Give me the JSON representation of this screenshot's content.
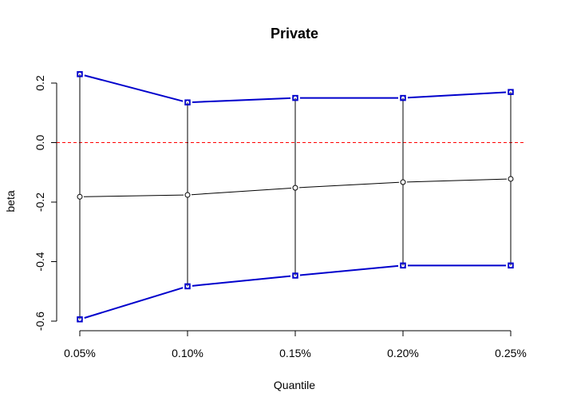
{
  "chart_data": {
    "type": "line",
    "title": "Private",
    "xlabel": "Quantile",
    "ylabel": "beta",
    "categories": [
      "0.05%",
      "0.10%",
      "0.15%",
      "0.20%",
      "0.25%"
    ],
    "y_ticks": [
      "-0.6",
      "-0.4",
      "-0.2",
      "0.0",
      "0.2"
    ],
    "ylim": [
      -0.6,
      0.2
    ],
    "reference_line": {
      "y": 0.0,
      "color": "#ff0000",
      "style": "dashed"
    },
    "series": [
      {
        "values": [
          0.23,
          0.135,
          0.15,
          0.15,
          0.17
        ],
        "color": "#0000cc"
      },
      {
        "values": [
          -0.182,
          -0.176,
          -0.152,
          -0.133,
          -0.122
        ],
        "color": "#000000"
      },
      {
        "values": [
          -0.594,
          -0.483,
          -0.447,
          -0.413,
          -0.413
        ],
        "color": "#0000cc"
      }
    ],
    "error_bars": true,
    "grid": false
  }
}
